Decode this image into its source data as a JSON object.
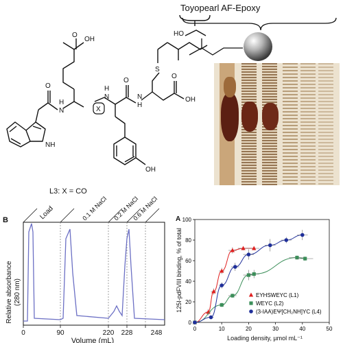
{
  "structure": {
    "resin_label": "Toyopearl AF-Epoxy",
    "compound_label": "L3:   X = CO",
    "atoms": {
      "oh_top": "OH",
      "ho": "HO",
      "s": "S",
      "x": "X",
      "h1": "H",
      "n1": "N",
      "h2": "H",
      "n2": "N",
      "h3": "H",
      "n3": "N",
      "o1": "O",
      "o2": "O",
      "o3": "O",
      "o4": "O",
      "oh_acid": "OH",
      "nh": "NH",
      "oh_phenol": "OH"
    }
  },
  "chromatogram": {
    "panel_label": "B",
    "ylabel_1": "Relative absorbance",
    "ylabel_2": "(280 nm)",
    "xlabel": "Volume (mL)",
    "ticks": [
      "0",
      "90",
      "220",
      "228",
      "248"
    ],
    "segments": [
      "Load",
      "0.1 M NaCl",
      "0.2 M NaCl",
      "0.6 M NaCl"
    ]
  },
  "binding_chart": {
    "panel_label": "A",
    "title": "",
    "ylabel": "125I-pdFVIII binding, % of total",
    "xlabel": "Loading density, µmol mL⁻¹"
  },
  "chart_data": {
    "type": "scatter",
    "title": "",
    "xlabel": "Loading density, µmol mL⁻¹",
    "ylabel": "125I-pdFVIII binding, % of total",
    "xlim": [
      0,
      50
    ],
    "ylim": [
      0,
      100
    ],
    "xticks": [
      0,
      10,
      20,
      30,
      40,
      50
    ],
    "yticks": [
      0,
      20,
      40,
      60,
      80,
      100
    ],
    "legend_position": "bottom-right",
    "series": [
      {
        "name": "EYHSWEYC (L1)",
        "color": "#e02020",
        "marker": "triangle",
        "x": [
          0,
          5,
          7,
          10,
          14,
          18,
          22
        ],
        "y": [
          0,
          10,
          30,
          50,
          70,
          72,
          72
        ],
        "xerr": [
          0,
          1,
          1,
          1,
          1.5,
          2,
          2
        ],
        "yerr": [
          0,
          3,
          3,
          3,
          3,
          2,
          2
        ]
      },
      {
        "name": "WEYC (L2)",
        "color": "#3c8f5a",
        "marker": "square",
        "x": [
          0,
          10,
          14,
          20,
          22,
          38,
          41
        ],
        "y": [
          0,
          17,
          26,
          46,
          47,
          63,
          62
        ],
        "xerr": [
          0,
          1,
          1.5,
          2,
          2,
          3,
          3
        ],
        "yerr": [
          0,
          2,
          2,
          5,
          4,
          2,
          2
        ]
      },
      {
        "name": "(3-IAA)EΨ[CH₂NH]YC (L4)",
        "color": "#1f2f9a",
        "marker": "circle",
        "x": [
          0,
          6,
          10,
          15,
          20,
          28,
          34,
          40
        ],
        "y": [
          0,
          5,
          36,
          54,
          66,
          75,
          80,
          85
        ],
        "xerr": [
          0,
          1,
          1,
          1.5,
          2,
          2,
          2,
          2
        ],
        "yerr": [
          0,
          2,
          3,
          4,
          5,
          6,
          3,
          5
        ]
      }
    ]
  }
}
